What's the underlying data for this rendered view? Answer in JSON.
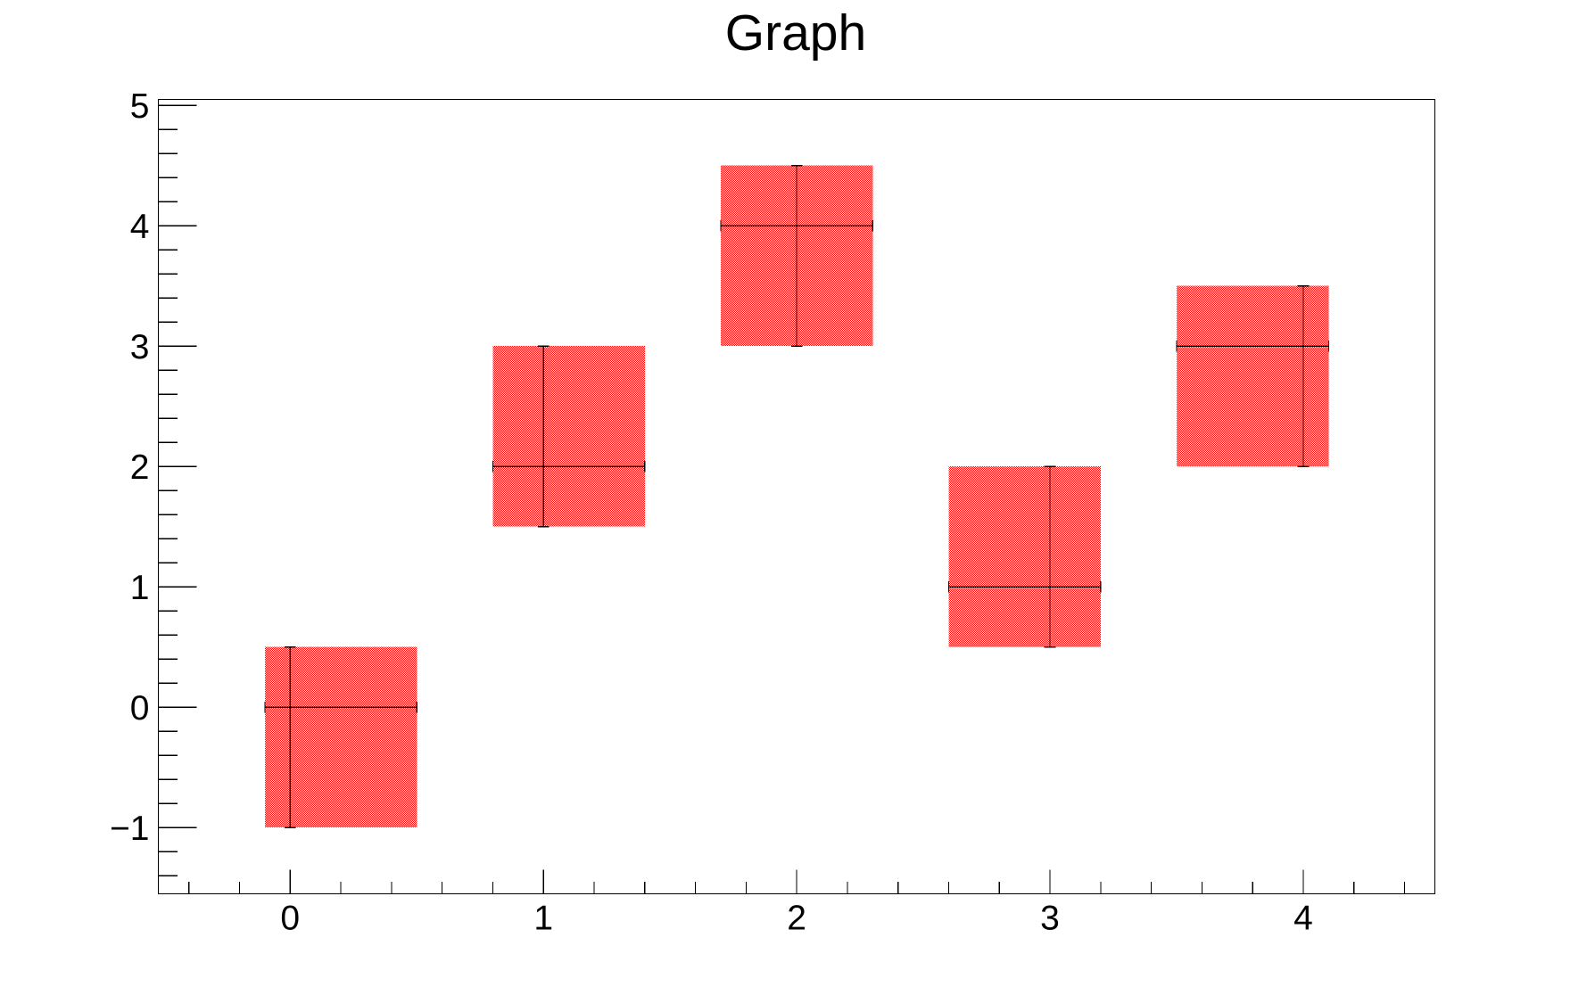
{
  "chart_data": {
    "type": "scatter",
    "subtype": "error_rectangles_with_error_bars",
    "title": "Graph",
    "xlabel": "",
    "ylabel": "",
    "grid": false,
    "legend": null,
    "background": "#ffffff",
    "frame_color": "#000000",
    "line_color": "#000000",
    "fill_color": "#ff0000",
    "fill_pattern": "checkerboard",
    "xlim": [
      -0.52,
      4.52
    ],
    "ylim": [
      -1.55,
      5.05
    ],
    "x_major_ticks": [
      0,
      1,
      2,
      3,
      4
    ],
    "x_tick_labels": [
      "0",
      "1",
      "2",
      "3",
      "4"
    ],
    "y_major_ticks": [
      -1,
      0,
      1,
      2,
      3,
      4,
      5
    ],
    "y_tick_labels": [
      "−1",
      "0",
      "1",
      "2",
      "3",
      "4",
      "5"
    ],
    "minor_tick_step": 0.2,
    "points": [
      {
        "x": 0,
        "y": 0,
        "exl": 0.1,
        "exh": 0.5,
        "eyl": 1.0,
        "eyh": 0.5
      },
      {
        "x": 1,
        "y": 2,
        "exl": 0.2,
        "exh": 0.4,
        "eyl": 0.5,
        "eyh": 1.0
      },
      {
        "x": 2,
        "y": 4,
        "exl": 0.3,
        "exh": 0.3,
        "eyl": 1.0,
        "eyh": 0.5
      },
      {
        "x": 3,
        "y": 1,
        "exl": 0.4,
        "exh": 0.2,
        "eyl": 0.5,
        "eyh": 1.0
      },
      {
        "x": 4,
        "y": 3,
        "exl": 0.5,
        "exh": 0.1,
        "eyl": 1.0,
        "eyh": 0.5
      }
    ]
  }
}
